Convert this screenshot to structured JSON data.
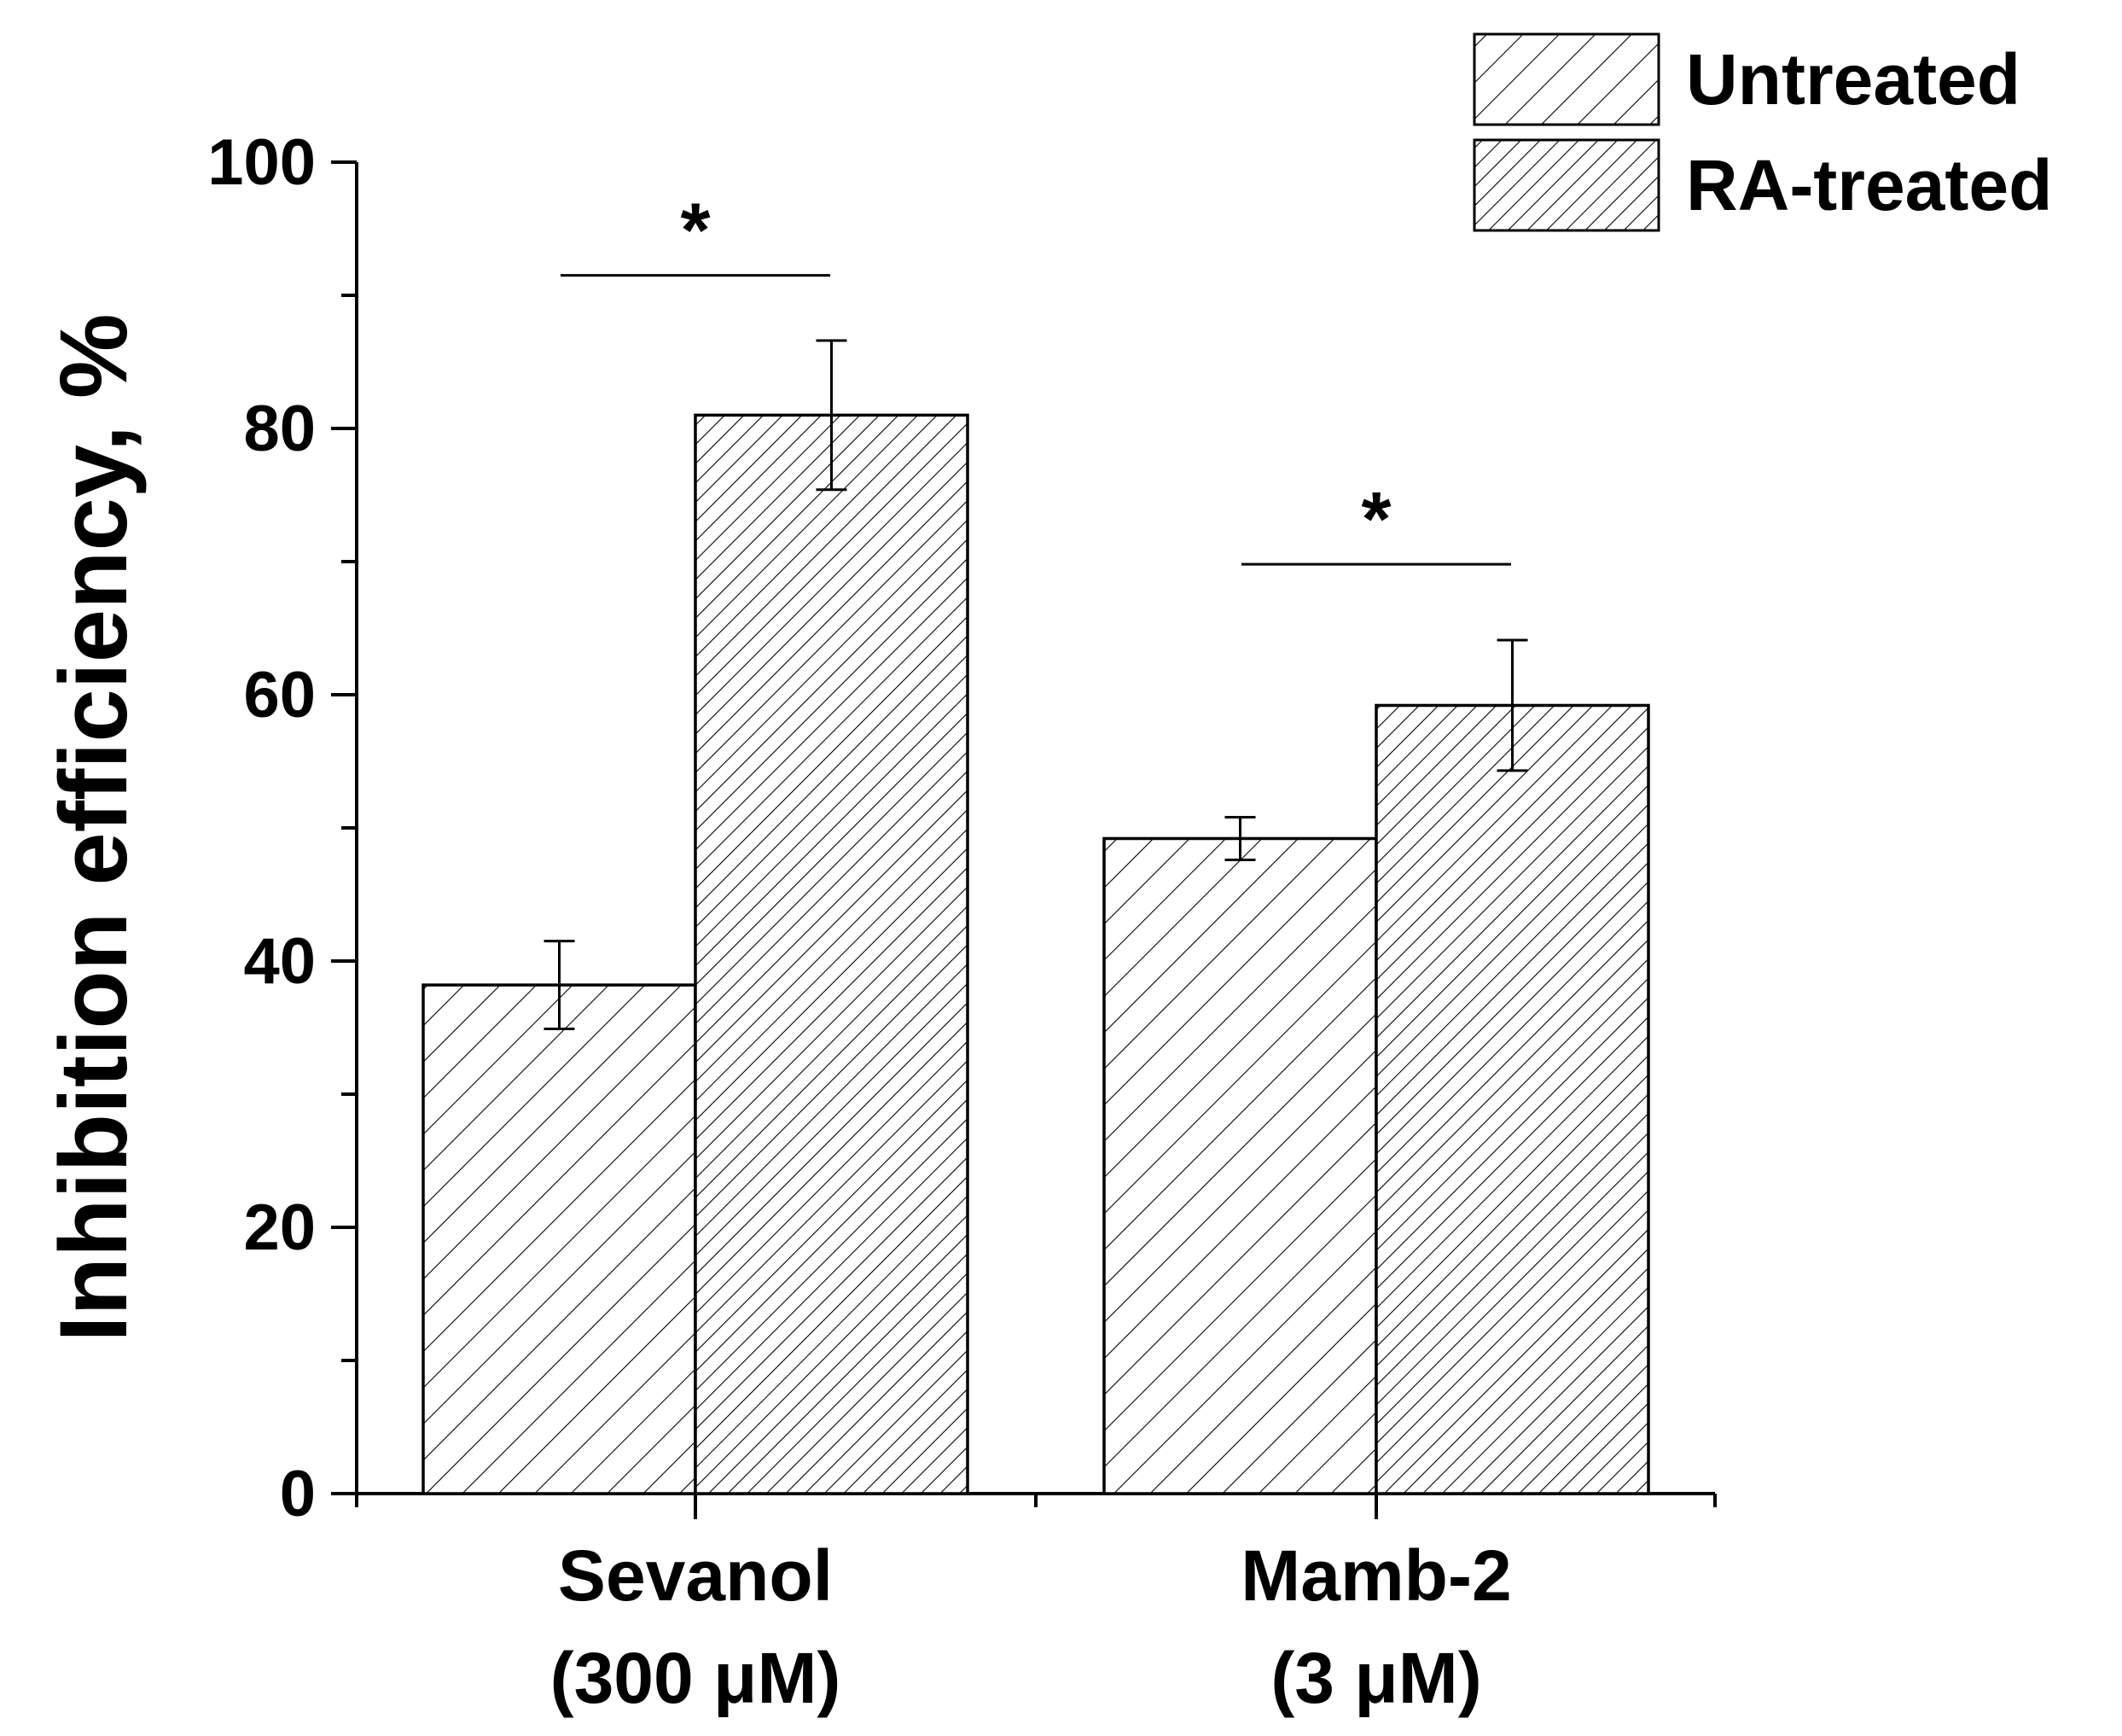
{
  "chart_data": {
    "type": "bar",
    "title": "",
    "xlabel": "",
    "ylabel": "Inhibition efficiency, %",
    "ylim": [
      0,
      100
    ],
    "yticks": [
      0,
      20,
      40,
      60,
      80,
      100
    ],
    "y_minor_step": 10,
    "grid": false,
    "legend_position": "top-right",
    "categories": [
      {
        "line1": "Sevanol",
        "line2": "(300 μM)"
      },
      {
        "line1": "Mamb-2",
        "line2": "(3 μM)"
      }
    ],
    "series": [
      {
        "name": "Untreated",
        "pattern": "sparse-diagonal-hatch",
        "values": [
          38.2,
          49.2
        ],
        "errors": [
          3.3,
          1.6
        ]
      },
      {
        "name": "RA-treated",
        "pattern": "dense-diagonal-hatch",
        "values": [
          81.0,
          59.2
        ],
        "errors": [
          5.6,
          4.9
        ]
      }
    ],
    "significance": [
      {
        "category_index": 0,
        "marker": "*",
        "bracket_y": 91.5
      },
      {
        "category_index": 1,
        "marker": "*",
        "bracket_y": 69.8
      }
    ]
  }
}
